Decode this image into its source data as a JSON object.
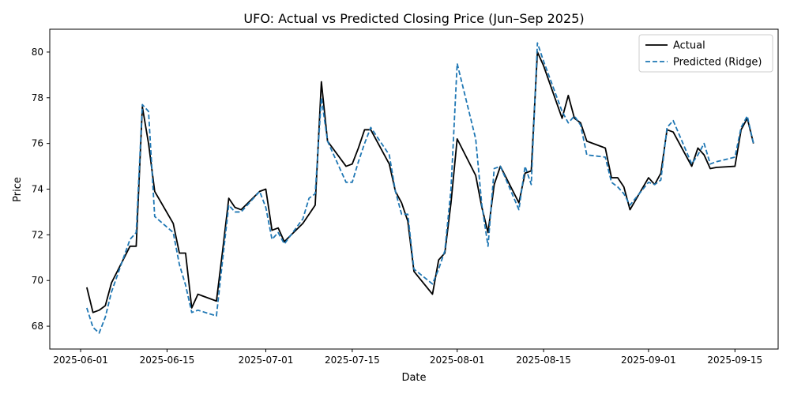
{
  "chart_data": {
    "type": "line",
    "title": "UFO: Actual vs Predicted Closing Price (Jun–Sep 2025)",
    "xlabel": "Date",
    "ylabel": "Price",
    "xlim": [
      "2025-05-27",
      "2025-09-22"
    ],
    "ylim": [
      67.0,
      81.0
    ],
    "grid": false,
    "legend_position": "top-right",
    "x_ticks": [
      {
        "date": "2025-06-01",
        "label": "2025-06-01"
      },
      {
        "date": "2025-06-15",
        "label": "2025-06-15"
      },
      {
        "date": "2025-07-01",
        "label": "2025-07-01"
      },
      {
        "date": "2025-07-15",
        "label": "2025-07-15"
      },
      {
        "date": "2025-08-01",
        "label": "2025-08-01"
      },
      {
        "date": "2025-08-15",
        "label": "2025-08-15"
      },
      {
        "date": "2025-09-01",
        "label": "2025-09-01"
      },
      {
        "date": "2025-09-15",
        "label": "2025-09-15"
      }
    ],
    "y_ticks": [
      68,
      70,
      72,
      74,
      76,
      78,
      80
    ],
    "x": [
      "2025-06-02",
      "2025-06-03",
      "2025-06-04",
      "2025-06-05",
      "2025-06-06",
      "2025-06-09",
      "2025-06-10",
      "2025-06-11",
      "2025-06-12",
      "2025-06-13",
      "2025-06-16",
      "2025-06-17",
      "2025-06-18",
      "2025-06-19",
      "2025-06-20",
      "2025-06-23",
      "2025-06-24",
      "2025-06-25",
      "2025-06-26",
      "2025-06-27",
      "2025-06-30",
      "2025-07-01",
      "2025-07-02",
      "2025-07-03",
      "2025-07-04",
      "2025-07-07",
      "2025-07-08",
      "2025-07-09",
      "2025-07-10",
      "2025-07-11",
      "2025-07-14",
      "2025-07-15",
      "2025-07-16",
      "2025-07-17",
      "2025-07-18",
      "2025-07-21",
      "2025-07-22",
      "2025-07-23",
      "2025-07-24",
      "2025-07-25",
      "2025-07-28",
      "2025-07-29",
      "2025-07-30",
      "2025-07-31",
      "2025-08-01",
      "2025-08-04",
      "2025-08-05",
      "2025-08-06",
      "2025-08-07",
      "2025-08-08",
      "2025-08-11",
      "2025-08-12",
      "2025-08-13",
      "2025-08-14",
      "2025-08-15",
      "2025-08-18",
      "2025-08-19",
      "2025-08-20",
      "2025-08-21",
      "2025-08-22",
      "2025-08-25",
      "2025-08-26",
      "2025-08-27",
      "2025-08-28",
      "2025-08-29",
      "2025-09-01",
      "2025-09-02",
      "2025-09-03",
      "2025-09-04",
      "2025-09-05",
      "2025-09-08",
      "2025-09-09",
      "2025-09-10",
      "2025-09-11",
      "2025-09-12",
      "2025-09-15",
      "2025-09-16",
      "2025-09-17",
      "2025-09-18"
    ],
    "series": [
      {
        "name": "Actual",
        "color": "#000000",
        "style": "solid",
        "values": [
          69.7,
          68.6,
          68.7,
          68.9,
          69.9,
          71.5,
          71.5,
          77.6,
          76.0,
          73.9,
          72.5,
          71.2,
          71.2,
          68.8,
          69.4,
          69.1,
          71.3,
          73.6,
          73.2,
          73.1,
          73.9,
          74.0,
          72.2,
          72.3,
          71.7,
          72.5,
          72.9,
          73.3,
          78.7,
          76.1,
          75.0,
          75.1,
          75.8,
          76.6,
          76.6,
          75.1,
          73.9,
          73.4,
          72.6,
          70.4,
          69.4,
          70.9,
          71.2,
          73.4,
          76.2,
          74.6,
          73.2,
          72.1,
          74.2,
          75.0,
          73.4,
          74.7,
          74.8,
          80.0,
          79.4,
          77.1,
          78.1,
          77.1,
          76.9,
          76.1,
          75.8,
          74.5,
          74.5,
          74.1,
          73.1,
          74.5,
          74.2,
          74.7,
          76.6,
          76.5,
          75.0,
          75.8,
          75.5,
          74.9,
          74.95,
          75.0,
          76.6,
          77.1,
          76.0
        ]
      },
      {
        "name": "Predicted (Ridge)",
        "color": "#1f77b4",
        "style": "dashed",
        "values": [
          68.8,
          67.95,
          67.7,
          68.4,
          69.5,
          71.8,
          72.1,
          77.7,
          77.4,
          72.8,
          72.1,
          70.7,
          69.8,
          68.6,
          68.7,
          68.45,
          70.9,
          73.3,
          73.0,
          73.0,
          73.9,
          73.2,
          71.8,
          72.1,
          71.6,
          72.7,
          73.6,
          73.8,
          78.0,
          76.1,
          74.3,
          74.3,
          75.2,
          76.0,
          76.7,
          75.5,
          73.9,
          72.9,
          72.9,
          70.5,
          69.85,
          70.5,
          71.3,
          74.0,
          79.5,
          76.2,
          73.3,
          71.5,
          74.9,
          75.0,
          73.1,
          75.0,
          74.2,
          80.4,
          79.6,
          77.4,
          76.9,
          77.2,
          76.8,
          75.5,
          75.4,
          74.3,
          74.1,
          73.8,
          73.3,
          74.3,
          74.2,
          74.4,
          76.7,
          77.0,
          75.1,
          75.5,
          76.0,
          75.1,
          75.2,
          75.4,
          76.7,
          77.2,
          76.0
        ]
      }
    ]
  }
}
